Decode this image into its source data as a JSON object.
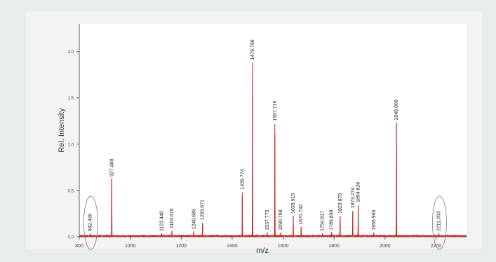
{
  "chart_data": {
    "type": "line",
    "title": "",
    "xlabel": "m/z",
    "ylabel": "Rel. Intensity",
    "xlim": [
      800,
      2320
    ],
    "ylim": [
      0,
      2.3
    ],
    "x_ticks": [
      800,
      1000,
      1200,
      1400,
      1600,
      1800,
      2000,
      2200
    ],
    "x_tick_labels": [
      "800",
      "1000",
      "1200",
      "1400",
      "1600",
      "1800",
      "2000",
      "2200"
    ],
    "y_ticks": [
      0,
      0.5,
      1.0,
      1.5,
      2.0
    ],
    "y_tick_labels": [
      "0.0",
      "0.5",
      "1.0",
      "1.5",
      "2.0"
    ],
    "grid": false,
    "line_color": "#cc1f1f",
    "peaks": [
      {
        "x": 842.439,
        "y": 0.03,
        "label": "842.439",
        "circled": true
      },
      {
        "x": 927.488,
        "y": 0.62,
        "label": "927.488"
      },
      {
        "x": 1123.448,
        "y": 0.03,
        "label": "1123.448"
      },
      {
        "x": 1163.615,
        "y": 0.06,
        "label": "1163.615"
      },
      {
        "x": 1249.689,
        "y": 0.05,
        "label": "1249.689"
      },
      {
        "x": 1283.671,
        "y": 0.15,
        "label": "1283.671"
      },
      {
        "x": 1439.774,
        "y": 0.48,
        "label": "1439.774"
      },
      {
        "x": 1479.798,
        "y": 1.88,
        "label": "1479.798"
      },
      {
        "x": 1537.775,
        "y": 0.04,
        "label": "1537.775"
      },
      {
        "x": 1567.719,
        "y": 1.22,
        "label": "1567.719"
      },
      {
        "x": 1590.768,
        "y": 0.04,
        "label": "1590.768"
      },
      {
        "x": 1639.915,
        "y": 0.22,
        "label": "1639.915"
      },
      {
        "x": 1670.742,
        "y": 0.1,
        "label": "1670.742"
      },
      {
        "x": 1754.817,
        "y": 0.03,
        "label": "1754.817"
      },
      {
        "x": 1789.898,
        "y": 0.04,
        "label": "1789.898"
      },
      {
        "x": 1823.879,
        "y": 0.22,
        "label": "1823.879"
      },
      {
        "x": 1873.274,
        "y": 0.28,
        "label": "1873.274"
      },
      {
        "x": 1894.826,
        "y": 0.34,
        "label": "1894.826"
      },
      {
        "x": 1955.965,
        "y": 0.04,
        "label": "1955.965"
      },
      {
        "x": 2045.009,
        "y": 1.23,
        "label": "2045.009"
      },
      {
        "x": 2211.093,
        "y": 0.03,
        "label": "2211.093",
        "circled": true
      }
    ]
  }
}
